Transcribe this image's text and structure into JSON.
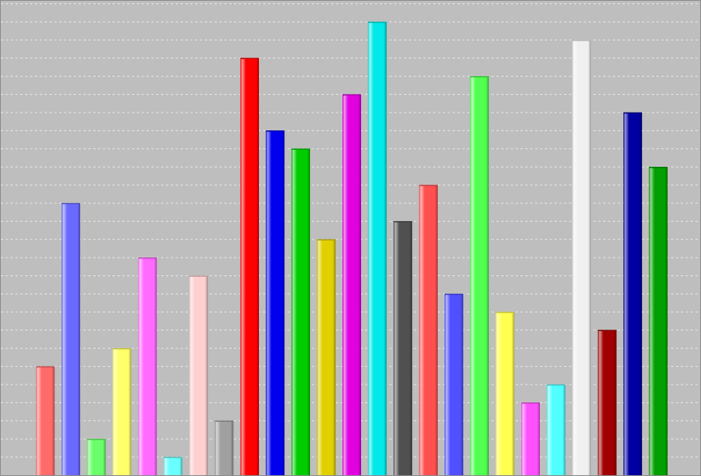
{
  "chart_data": {
    "type": "bar",
    "title": "",
    "xlabel": "",
    "ylabel": "",
    "ylim": [
      0,
      26
    ],
    "grid": true,
    "legend": "none",
    "values": [
      6,
      15,
      2,
      7,
      12,
      1,
      11,
      3,
      23,
      19,
      18,
      13,
      21,
      25,
      14,
      16,
      10,
      22,
      9,
      4,
      5,
      24,
      8,
      20,
      17
    ],
    "colors": [
      "#ff6a6a",
      "#6a6aff",
      "#6aff6a",
      "#ffff6a",
      "#ff6aff",
      "#6affff",
      "#ffd0d0",
      "#a0a0a0",
      "#ff0000",
      "#0000ee",
      "#00cc00",
      "#e0d000",
      "#e000e0",
      "#00e8e8",
      "#505050",
      "#ff5050",
      "#5050ff",
      "#50ff50",
      "#ffff50",
      "#ff50ff",
      "#50ffff",
      "#f0f0f0",
      "#a00000",
      "#0000a0",
      "#00a000"
    ]
  }
}
